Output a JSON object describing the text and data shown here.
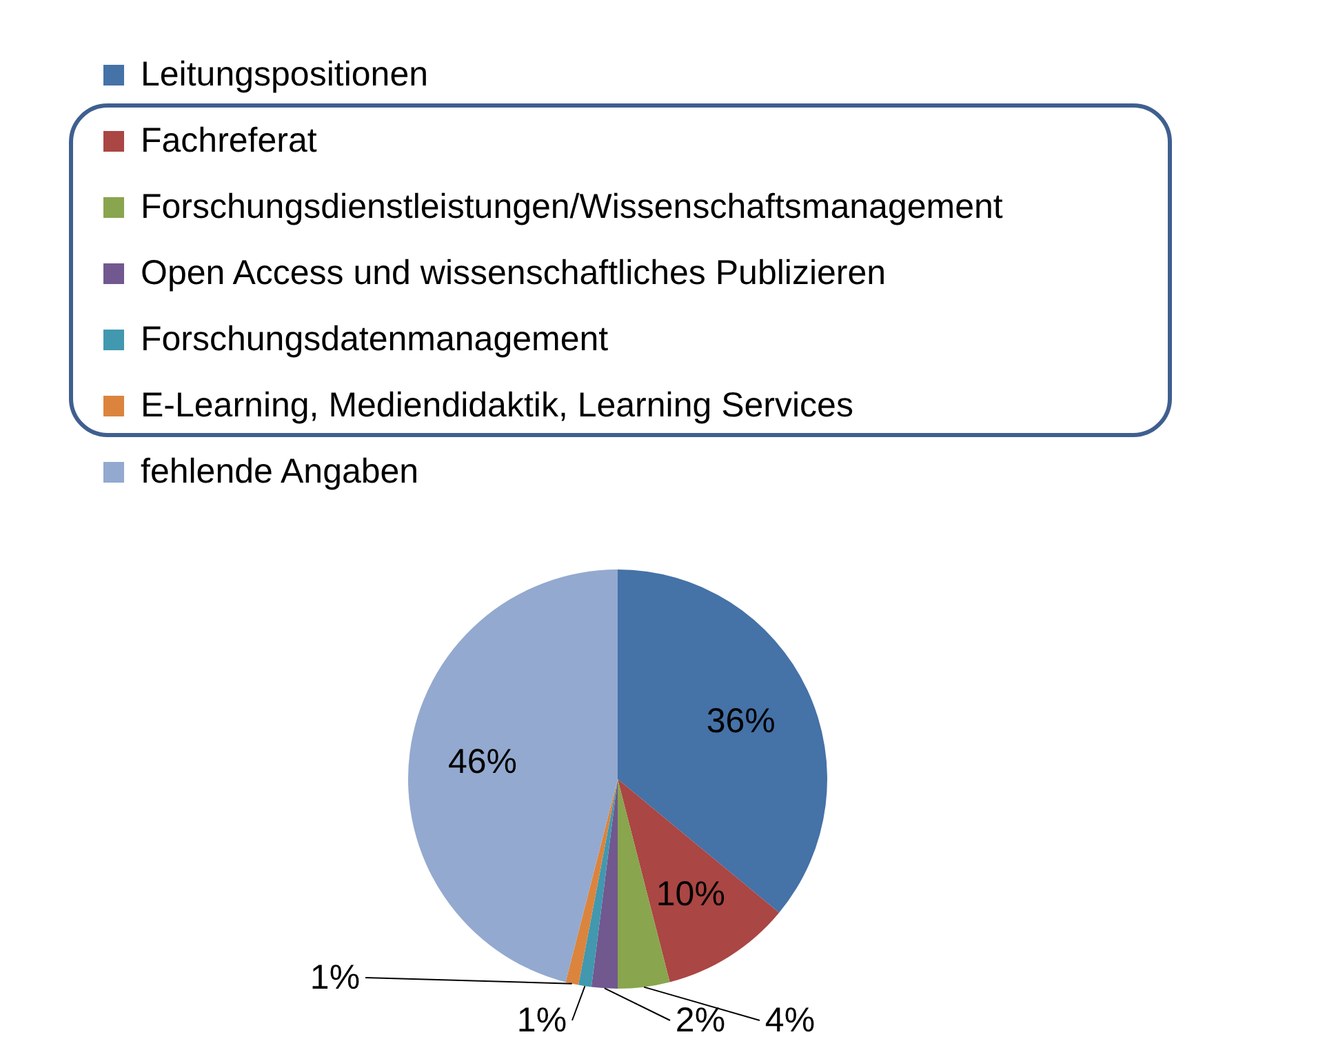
{
  "chart_data": {
    "type": "pie",
    "legend": "top",
    "value_labels": [
      "36%",
      "10%",
      "4%",
      "2%",
      "1%",
      "1%",
      "46%"
    ],
    "categories": [
      "Leitungspositionen",
      "Fachreferat",
      "Forschungsdienstleistungen/Wissenschaftsmanagement",
      "Open Access und wissenschaftliches Publizieren",
      "Forschungsdatenmanagement",
      "E-Learning, Mediendidaktik, Learning Services",
      "fehlende Angaben"
    ],
    "values": [
      36,
      10,
      4,
      2,
      1,
      1,
      46
    ],
    "colors": [
      "#4572a7",
      "#aa4643",
      "#89a54e",
      "#71588f",
      "#4198af",
      "#db843d",
      "#93a9cf"
    ]
  }
}
